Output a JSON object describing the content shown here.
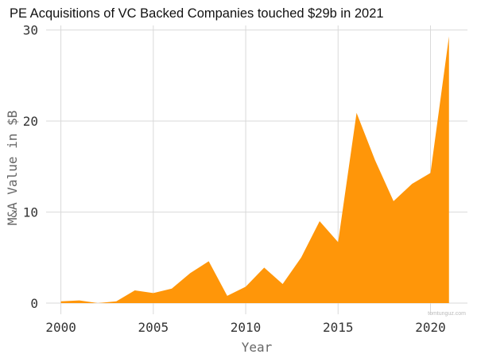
{
  "chart_data": {
    "type": "area",
    "title": "PE Acquisitions of VC Backed Companies touched $29b in 2021",
    "xlabel": "Year",
    "ylabel": "M&A Value in $B",
    "x": [
      2000,
      2001,
      2002,
      2003,
      2004,
      2005,
      2006,
      2007,
      2008,
      2009,
      2010,
      2011,
      2012,
      2013,
      2014,
      2015,
      2016,
      2017,
      2018,
      2019,
      2020,
      2021
    ],
    "values": [
      0.2,
      0.3,
      0.0,
      0.2,
      1.4,
      1.1,
      1.6,
      3.3,
      4.6,
      0.8,
      1.8,
      3.9,
      2.1,
      5.0,
      9.0,
      6.7,
      20.9,
      15.7,
      11.2,
      13.1,
      14.3,
      29.3
    ],
    "xlim": [
      1999.2,
      2022.0
    ],
    "ylim": [
      0,
      30.5
    ],
    "x_ticks": [
      2000,
      2005,
      2010,
      2015,
      2020
    ],
    "y_ticks": [
      0,
      10,
      20,
      30
    ],
    "grid": true,
    "legend": "none",
    "fill_color": "#FF9609",
    "watermark": "tomtunguz.com"
  }
}
